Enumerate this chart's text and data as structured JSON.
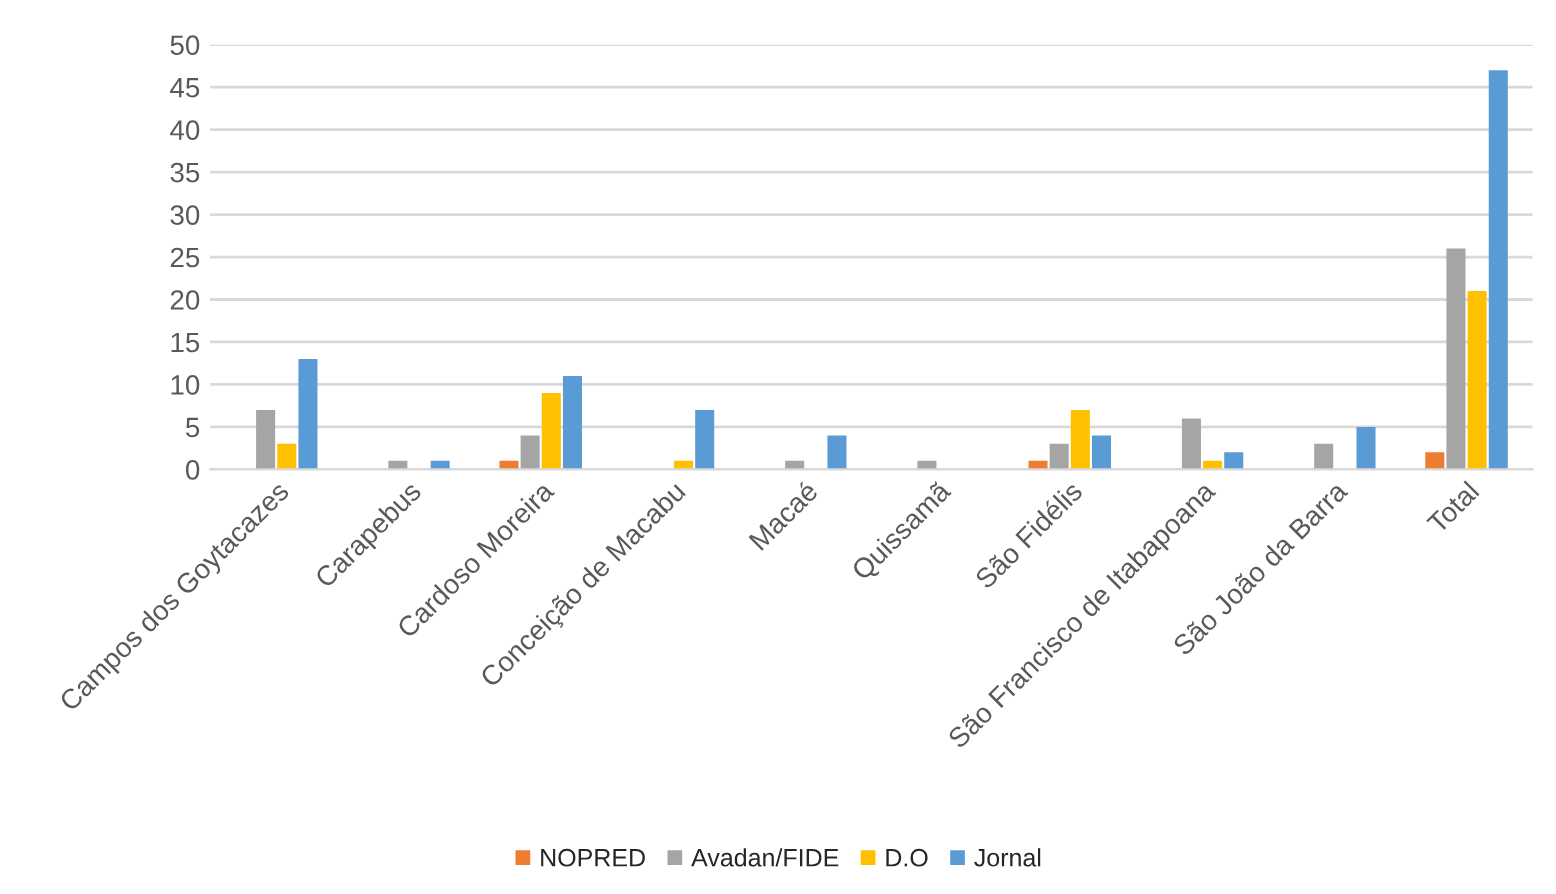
{
  "chart_data": {
    "type": "bar",
    "categories": [
      "Campos dos Goytacazes",
      "Carapebus",
      "Cardoso Moreira",
      "Conceição de Macabu",
      "Macaé",
      "Quissamã",
      "São Fidélis",
      "São Francisco de Itabapoana",
      "São João da Barra",
      "Total"
    ],
    "series": [
      {
        "name": "NOPRED",
        "color": "#ed7d31",
        "values": [
          0,
          0,
          1,
          0,
          0,
          0,
          1,
          0,
          0,
          2
        ]
      },
      {
        "name": "Avadan/FIDE",
        "color": "#a5a5a5",
        "values": [
          7,
          1,
          4,
          0,
          1,
          1,
          3,
          6,
          3,
          26
        ]
      },
      {
        "name": "D.O",
        "color": "#ffc000",
        "values": [
          3,
          0,
          9,
          1,
          0,
          0,
          7,
          1,
          0,
          21
        ]
      },
      {
        "name": "Jornal",
        "color": "#5b9bd5",
        "values": [
          13,
          1,
          11,
          7,
          4,
          0,
          4,
          2,
          5,
          47
        ]
      }
    ],
    "ylim": [
      0,
      50
    ],
    "yticks": [
      0,
      5,
      10,
      15,
      20,
      25,
      30,
      35,
      40,
      45,
      50
    ],
    "grid": "y",
    "legend": "bottom"
  }
}
